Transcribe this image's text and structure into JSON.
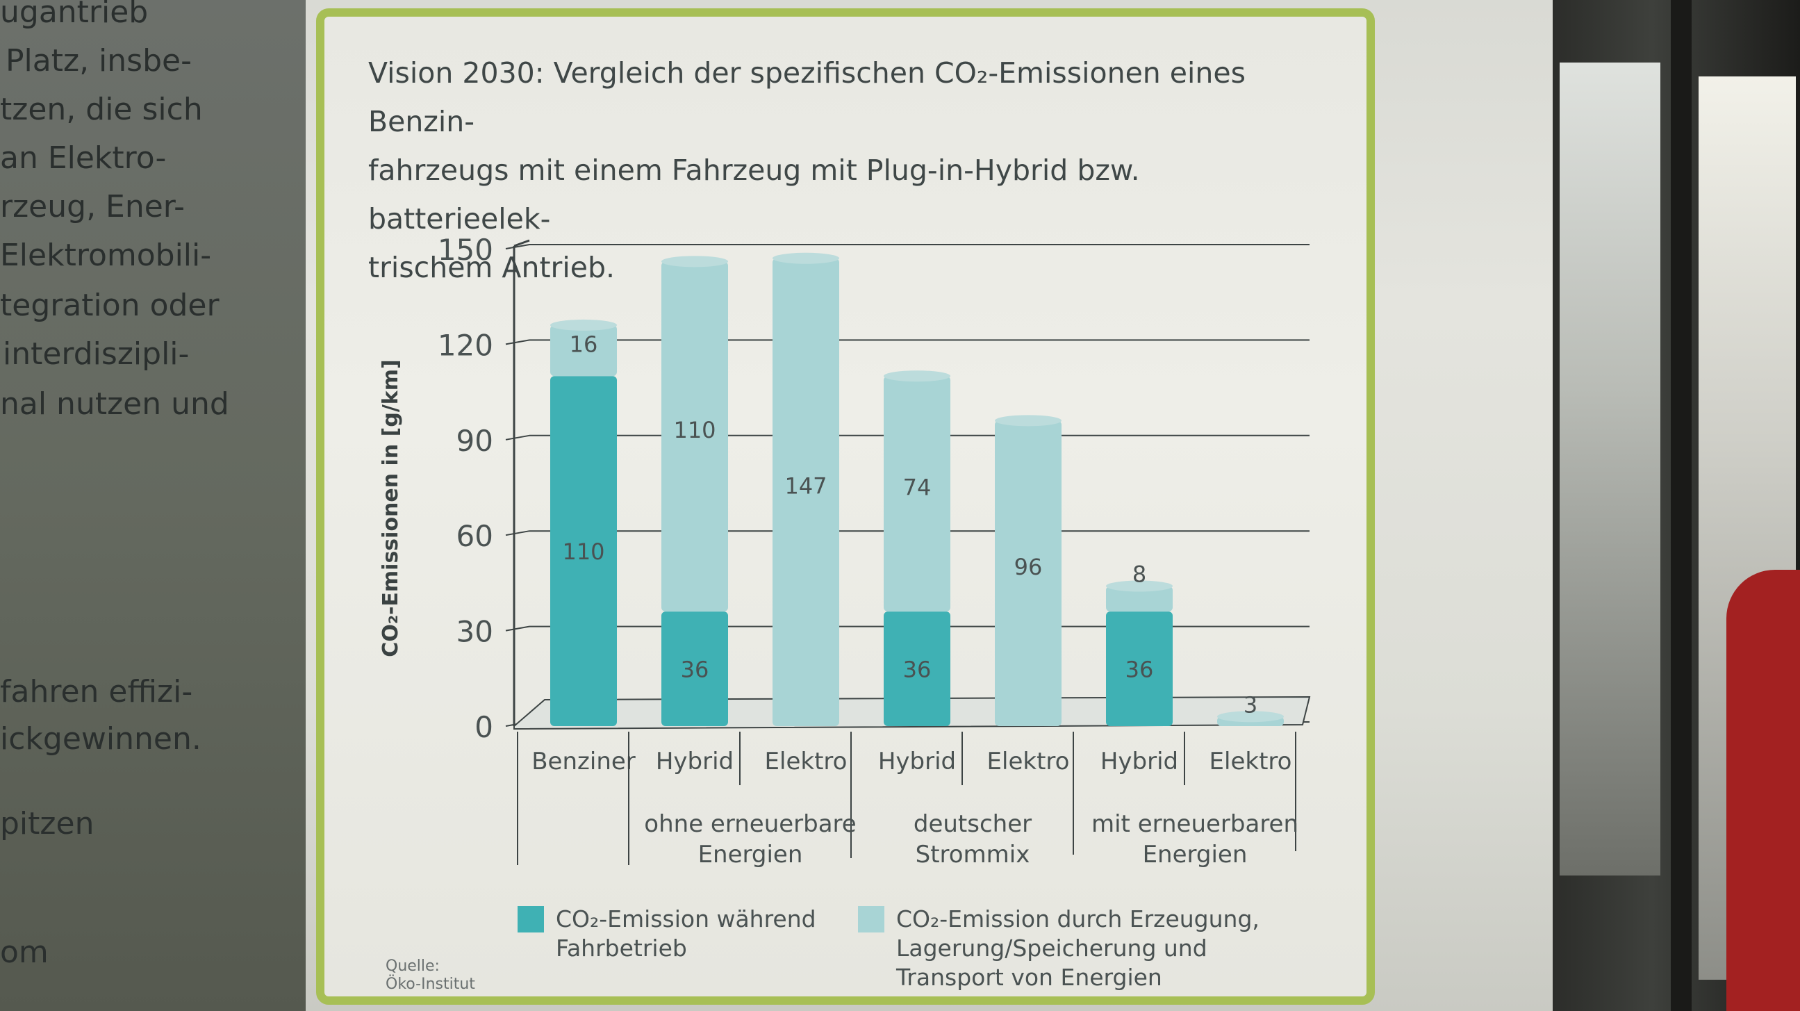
{
  "background_text": {
    "left_lines": [
      "ugantrieb",
      "Platz, insbe-",
      "tzen, die sich",
      "an Elektro-",
      "rzeug, Ener-",
      "Elektromobili-",
      "tegration oder",
      "interdiszipli-",
      "nal nutzen und",
      "fahren effizi-",
      "ickgewinnen.",
      "pitzen",
      "om"
    ]
  },
  "chart_data": {
    "type": "bar",
    "stacked": true,
    "title": "Vision 2030: Vergleich der spezifischen CO₂-Emissionen eines Benzinfahrzeugs mit einem Fahrzeug mit Plug-in-Hybrid bzw. batterieelektrischem Antrieb.",
    "title_lines": [
      "Vision 2030: Vergleich der spezifischen CO₂-Emissionen eines Benzin-",
      "fahrzeugs mit einem Fahrzeug mit Plug-in-Hybrid bzw. batterieelek-",
      "trischem Antrieb."
    ],
    "ylabel": "CO₂-Emissionen in [g/km]",
    "ylim": [
      0,
      150
    ],
    "yticks": [
      0,
      30,
      60,
      90,
      120,
      150
    ],
    "grid": true,
    "categories": [
      "Benziner",
      "Hybrid",
      "Elektro",
      "Hybrid",
      "Elektro",
      "Hybrid",
      "Elektro"
    ],
    "groups": [
      {
        "label": [
          "ohne erneuerbare",
          "Energien"
        ],
        "categories": [
          1,
          2
        ]
      },
      {
        "label": [
          "deutscher",
          "Strommix"
        ],
        "categories": [
          3,
          4
        ]
      },
      {
        "label": [
          "mit erneuerbaren",
          "Energien"
        ],
        "categories": [
          5,
          6
        ]
      }
    ],
    "series": [
      {
        "name": "CO₂-Emission während Fahrbetrieb",
        "legend_lines": [
          "CO₂-Emission während",
          "Fahrbetrieb"
        ],
        "color": "#3fb1b4",
        "values": [
          110,
          36,
          0,
          36,
          0,
          36,
          0
        ]
      },
      {
        "name": "CO₂-Emission durch Erzeugung, Lagerung/Speicherung und Transport von Energien",
        "legend_lines": [
          "CO₂-Emission durch Erzeugung,",
          "Lagerung/Speicherung und",
          "Transport von Energien"
        ],
        "color": "#a8d4d5",
        "values": [
          16,
          110,
          147,
          74,
          96,
          8,
          3
        ]
      }
    ],
    "data_labels": [
      {
        "bar": 0,
        "series": 0,
        "text": "110"
      },
      {
        "bar": 0,
        "series": 1,
        "text": "16"
      },
      {
        "bar": 1,
        "series": 0,
        "text": "36"
      },
      {
        "bar": 1,
        "series": 1,
        "text": "110"
      },
      {
        "bar": 2,
        "series": 1,
        "text": "147"
      },
      {
        "bar": 3,
        "series": 0,
        "text": "36"
      },
      {
        "bar": 3,
        "series": 1,
        "text": "74"
      },
      {
        "bar": 4,
        "series": 1,
        "text": "96"
      },
      {
        "bar": 5,
        "series": 0,
        "text": "36"
      },
      {
        "bar": 5,
        "series": 1,
        "text": "8"
      },
      {
        "bar": 6,
        "series": 1,
        "text": "3"
      }
    ],
    "legend_position": "bottom",
    "source_lines": [
      "Quelle:",
      "Öko-Institut"
    ]
  }
}
